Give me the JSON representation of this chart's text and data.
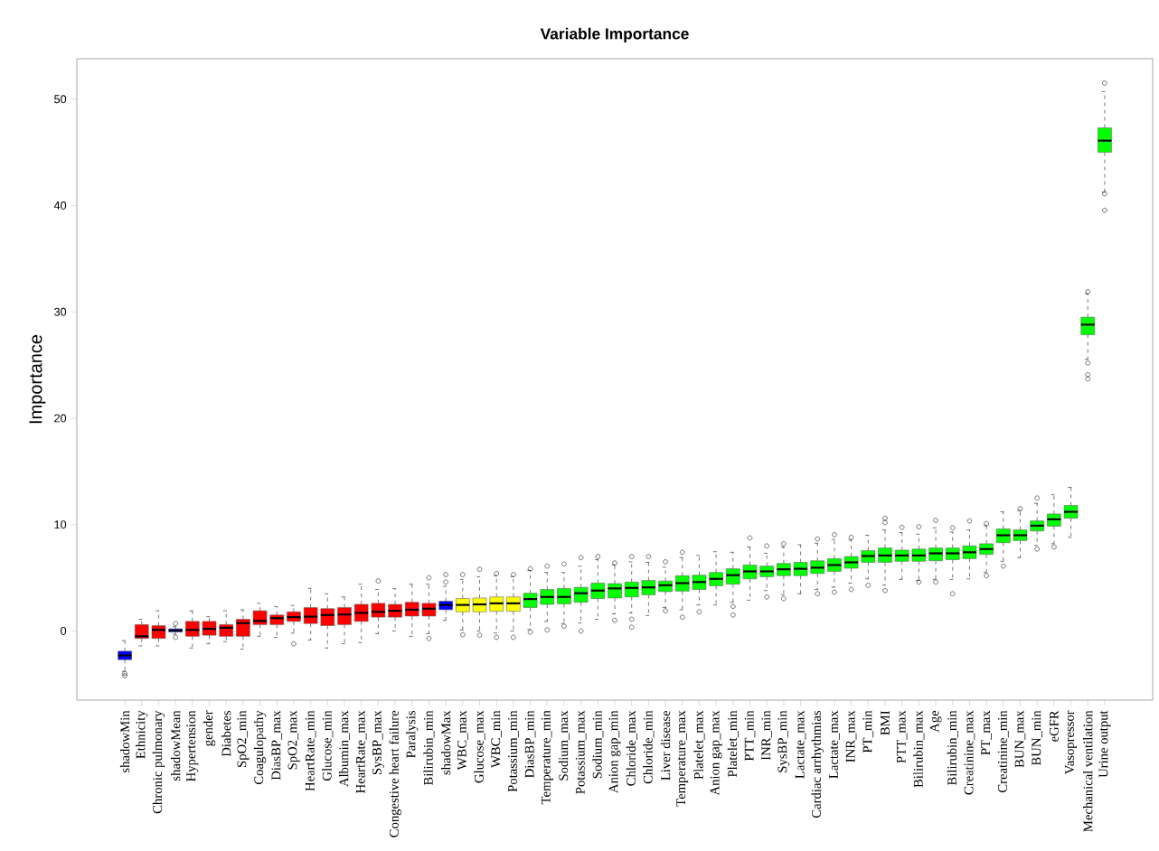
{
  "chart_data": {
    "type": "box",
    "title": "Variable Importance",
    "ylabel": "Importance",
    "categories": [
      "shadowMin",
      "Ethnicity",
      "Chronic pulmonary",
      "shadowMean",
      "Hypertension",
      "gender",
      "Diabetes",
      "SpO2_min",
      "Coagulopathy",
      "DiasBP_max",
      "SpO2_max",
      "HeartRate_min",
      "Glucose_min",
      "Albumin_max",
      "HeartRate_max",
      "SysBP_max",
      "Congestive heart failure",
      "Paralysis",
      "Bilirubin_min",
      "shadowMax",
      "WBC_max",
      "Glucose_max",
      "WBC_min",
      "Potassium_min",
      "DiasBP_min",
      "Temperature_min",
      "Sodium_max",
      "Potassium_max",
      "Sodium_min",
      "Anion gap_min",
      "Chloride_max",
      "Chloride_min",
      "Liver disease",
      "Temperature_max",
      "Platelet_max",
      "Anion gap_max",
      "Platelet_min",
      "PTT_min",
      "INR_min",
      "SysBP_min",
      "Lactate_max",
      "Cardiac arrhythmias",
      "Lactate_max",
      "INR_max",
      "PT_min",
      "BMI",
      "PTT_max",
      "Bilirubin_max",
      "Age",
      "Bilirubin_min",
      "Creatinine_max",
      "PT_max",
      "Creatinine_min",
      "BUN_max",
      "BUN_min",
      "eGFR",
      "Vasopressor",
      "Mechanical ventilation",
      "Urine output"
    ],
    "colors": [
      "#0000ff",
      "#ff0000",
      "#ff0000",
      "#0000ff",
      "#ff0000",
      "#ff0000",
      "#ff0000",
      "#ff0000",
      "#ff0000",
      "#ff0000",
      "#ff0000",
      "#ff0000",
      "#ff0000",
      "#ff0000",
      "#ff0000",
      "#ff0000",
      "#ff0000",
      "#ff0000",
      "#ff0000",
      "#0000ff",
      "#ffff00",
      "#ffff00",
      "#ffff00",
      "#ffff00",
      "#00ff00",
      "#00ff00",
      "#00ff00",
      "#00ff00",
      "#00ff00",
      "#00ff00",
      "#00ff00",
      "#00ff00",
      "#00ff00",
      "#00ff00",
      "#00ff00",
      "#00ff00",
      "#00ff00",
      "#00ff00",
      "#00ff00",
      "#00ff00",
      "#00ff00",
      "#00ff00",
      "#00ff00",
      "#00ff00",
      "#00ff00",
      "#00ff00",
      "#00ff00",
      "#00ff00",
      "#00ff00",
      "#00ff00",
      "#00ff00",
      "#00ff00",
      "#00ff00",
      "#00ff00",
      "#00ff00",
      "#00ff00",
      "#00ff00",
      "#00ff00",
      "#00ff00"
    ],
    "boxes": [
      {
        "low": -3.8,
        "q1": -2.7,
        "median": -2.3,
        "q3": -1.9,
        "high": -0.9,
        "outliers": [
          -4.0,
          -4.2
        ]
      },
      {
        "low": -1.4,
        "q1": -0.7,
        "median": -0.5,
        "q3": 0.6,
        "high": 1.1
      },
      {
        "low": -1.4,
        "q1": -0.7,
        "median": 0.1,
        "q3": 0.5,
        "high": 1.9
      },
      {
        "low": -0.3,
        "q1": -0.1,
        "median": 0.05,
        "q3": 0.2,
        "high": 0.4,
        "outliers": [
          0.7,
          -0.6
        ]
      },
      {
        "low": -1.6,
        "q1": -0.5,
        "median": 0.1,
        "q3": 0.9,
        "high": 1.9
      },
      {
        "low": -1.2,
        "q1": -0.4,
        "median": 0.2,
        "q3": 0.9,
        "high": 1.35
      },
      {
        "low": -1.0,
        "q1": -0.5,
        "median": 0.3,
        "q3": 0.6,
        "high": 1.9
      },
      {
        "low": -1.7,
        "q1": -0.5,
        "median": 0.75,
        "q3": 1.1,
        "high": 2.0
      },
      {
        "low": -0.5,
        "q1": 0.6,
        "median": 0.95,
        "q3": 1.9,
        "high": 2.6
      },
      {
        "low": -0.6,
        "q1": 0.6,
        "median": 1.2,
        "q3": 1.5,
        "high": 2.3
      },
      {
        "low": -0.2,
        "q1": 0.9,
        "median": 1.3,
        "q3": 1.8,
        "high": 2.4,
        "outliers": [
          -1.2
        ]
      },
      {
        "low": -0.85,
        "q1": 0.7,
        "median": 1.35,
        "q3": 2.2,
        "high": 4.0
      },
      {
        "low": -1.6,
        "q1": 0.5,
        "median": 1.5,
        "q3": 2.1,
        "high": 3.5
      },
      {
        "low": -1.2,
        "q1": 0.6,
        "median": 1.55,
        "q3": 2.2,
        "high": 3.2
      },
      {
        "low": -1.1,
        "q1": 0.9,
        "median": 1.7,
        "q3": 2.5,
        "high": 4.4
      },
      {
        "low": -0.25,
        "q1": 1.3,
        "median": 1.8,
        "q3": 2.6,
        "high": 3.9,
        "outliers": [
          4.7
        ]
      },
      {
        "low": 0.0,
        "q1": 1.3,
        "median": 1.9,
        "q3": 2.5,
        "high": 4.0
      },
      {
        "low": -0.5,
        "q1": 1.4,
        "median": 2.0,
        "q3": 2.7,
        "high": 4.4
      },
      {
        "low": -0.25,
        "q1": 1.4,
        "median": 2.1,
        "q3": 2.6,
        "high": 4.4,
        "outliers": [
          5.0,
          -0.7
        ]
      },
      {
        "low": 1.0,
        "q1": 2.0,
        "median": 2.45,
        "q3": 2.8,
        "high": 4.2,
        "outliers": [
          4.6,
          5.3
        ]
      },
      {
        "low": 0.1,
        "q1": 1.8,
        "median": 2.45,
        "q3": 3.05,
        "high": 4.85,
        "outliers": [
          5.3,
          -0.35
        ]
      },
      {
        "low": 0.0,
        "q1": 1.8,
        "median": 2.5,
        "q3": 3.1,
        "high": 5.1,
        "outliers": [
          5.8,
          -0.4
        ]
      },
      {
        "low": -0.2,
        "q1": 1.85,
        "median": 2.6,
        "q3": 3.2,
        "high": 5.2,
        "outliers": [
          5.4,
          -0.6
        ]
      },
      {
        "low": 0.0,
        "q1": 1.85,
        "median": 2.6,
        "q3": 3.2,
        "high": 5.1,
        "outliers": [
          5.3,
          -0.6
        ]
      },
      {
        "low": 0.15,
        "q1": 2.2,
        "median": 3.0,
        "q3": 3.55,
        "high": 5.7,
        "outliers": [
          5.85,
          -0.1
        ]
      },
      {
        "low": 0.9,
        "q1": 2.5,
        "median": 3.2,
        "q3": 3.9,
        "high": 5.5,
        "outliers": [
          6.1,
          0.1
        ]
      },
      {
        "low": 0.7,
        "q1": 2.55,
        "median": 3.2,
        "q3": 4.0,
        "high": 5.5,
        "outliers": [
          6.3,
          0.45
        ]
      },
      {
        "low": 0.75,
        "q1": 2.7,
        "median": 3.55,
        "q3": 4.1,
        "high": 6.1,
        "outliers": [
          6.9,
          0.0
        ]
      },
      {
        "low": 1.1,
        "q1": 3.05,
        "median": 3.8,
        "q3": 4.5,
        "high": 6.7,
        "outliers": [
          7.0
        ]
      },
      {
        "low": 1.6,
        "q1": 3.1,
        "median": 4.0,
        "q3": 4.45,
        "high": 6.2,
        "outliers": [
          6.4,
          1.0
        ]
      },
      {
        "low": 1.7,
        "q1": 3.2,
        "median": 4.05,
        "q3": 4.6,
        "high": 6.5,
        "outliers": [
          7.0,
          1.1,
          0.35
        ]
      },
      {
        "low": 1.45,
        "q1": 3.4,
        "median": 4.1,
        "q3": 4.75,
        "high": 6.45,
        "outliers": [
          7.0
        ]
      },
      {
        "low": 2.2,
        "q1": 3.7,
        "median": 4.3,
        "q3": 4.7,
        "high": 6.0,
        "outliers": [
          6.5,
          1.9
        ]
      },
      {
        "low": 2.0,
        "q1": 3.75,
        "median": 4.5,
        "q3": 5.2,
        "high": 6.9,
        "outliers": [
          7.4,
          1.3
        ]
      },
      {
        "low": 2.45,
        "q1": 3.9,
        "median": 4.6,
        "q3": 5.25,
        "high": 7.1,
        "outliers": [
          1.8
        ]
      },
      {
        "low": 2.45,
        "q1": 4.25,
        "median": 4.9,
        "q3": 5.5,
        "high": 7.45
      },
      {
        "low": 2.7,
        "q1": 4.4,
        "median": 5.25,
        "q3": 5.85,
        "high": 7.4,
        "outliers": [
          2.3,
          1.5
        ]
      },
      {
        "low": 2.9,
        "q1": 4.9,
        "median": 5.6,
        "q3": 6.2,
        "high": 7.9,
        "outliers": [
          8.75
        ]
      },
      {
        "low": 3.8,
        "q1": 5.1,
        "median": 5.6,
        "q3": 6.1,
        "high": 7.3,
        "outliers": [
          8.0,
          3.2
        ]
      },
      {
        "low": 3.4,
        "q1": 5.2,
        "median": 5.8,
        "q3": 6.35,
        "high": 7.9,
        "outliers": [
          8.2,
          3.05
        ]
      },
      {
        "low": 3.5,
        "q1": 5.2,
        "median": 5.85,
        "q3": 6.45,
        "high": 8.1
      },
      {
        "low": 3.9,
        "q1": 5.4,
        "median": 5.95,
        "q3": 6.6,
        "high": 8.25,
        "outliers": [
          8.65,
          3.5
        ]
      },
      {
        "low": 4.1,
        "q1": 5.6,
        "median": 6.2,
        "q3": 6.8,
        "high": 8.6,
        "outliers": [
          9.05,
          3.65
        ]
      },
      {
        "low": 4.5,
        "q1": 5.9,
        "median": 6.45,
        "q3": 7.0,
        "high": 8.55,
        "outliers": [
          8.8,
          3.9
        ]
      },
      {
        "low": 4.9,
        "q1": 6.45,
        "median": 7.05,
        "q3": 7.55,
        "high": 9.0,
        "outliers": [
          4.3
        ]
      },
      {
        "low": 4.3,
        "q1": 6.45,
        "median": 7.1,
        "q3": 7.8,
        "high": 9.5,
        "outliers": [
          10.6,
          10.2,
          3.8
        ]
      },
      {
        "low": 4.85,
        "q1": 6.55,
        "median": 7.1,
        "q3": 7.6,
        "high": 9.25,
        "outliers": [
          9.75
        ]
      },
      {
        "low": 4.75,
        "q1": 6.55,
        "median": 7.1,
        "q3": 7.7,
        "high": 9.1,
        "outliers": [
          9.8,
          4.6
        ]
      },
      {
        "low": 4.85,
        "q1": 6.6,
        "median": 7.3,
        "q3": 7.8,
        "high": 9.7,
        "outliers": [
          10.4,
          4.6
        ]
      },
      {
        "low": 4.85,
        "q1": 6.7,
        "median": 7.3,
        "q3": 7.8,
        "high": 9.3,
        "outliers": [
          9.7,
          3.5
        ]
      },
      {
        "low": 4.9,
        "q1": 6.8,
        "median": 7.4,
        "q3": 8.0,
        "high": 9.5,
        "outliers": [
          10.35
        ]
      },
      {
        "low": 5.5,
        "q1": 7.2,
        "median": 7.7,
        "q3": 8.2,
        "high": 9.9,
        "outliers": [
          10.1,
          5.2
        ]
      },
      {
        "low": 6.55,
        "q1": 8.3,
        "median": 9.0,
        "q3": 9.6,
        "high": 11.2,
        "outliers": [
          6.1
        ]
      },
      {
        "low": 6.9,
        "q1": 8.5,
        "median": 9.0,
        "q3": 9.5,
        "high": 11.3,
        "outliers": [
          11.5
        ]
      },
      {
        "low": 8.05,
        "q1": 9.4,
        "median": 9.9,
        "q3": 10.35,
        "high": 12.0,
        "outliers": [
          12.5,
          7.7
        ]
      },
      {
        "low": 8.2,
        "q1": 9.85,
        "median": 10.5,
        "q3": 11.0,
        "high": 12.8,
        "outliers": [
          7.9
        ]
      },
      {
        "low": 8.8,
        "q1": 10.6,
        "median": 11.2,
        "q3": 11.8,
        "high": 13.5
      },
      {
        "low": 25.55,
        "q1": 27.85,
        "median": 28.8,
        "q3": 29.5,
        "high": 31.7,
        "outliers": [
          31.9,
          25.2,
          24.1,
          23.7
        ]
      },
      {
        "low": 41.25,
        "q1": 45.0,
        "median": 46.1,
        "q3": 47.3,
        "high": 50.7,
        "outliers": [
          51.5,
          41.1,
          39.55
        ]
      }
    ],
    "ylim": [
      -6.5,
      53.8
    ],
    "yticks": [
      0,
      10,
      20,
      30,
      40,
      50
    ]
  }
}
